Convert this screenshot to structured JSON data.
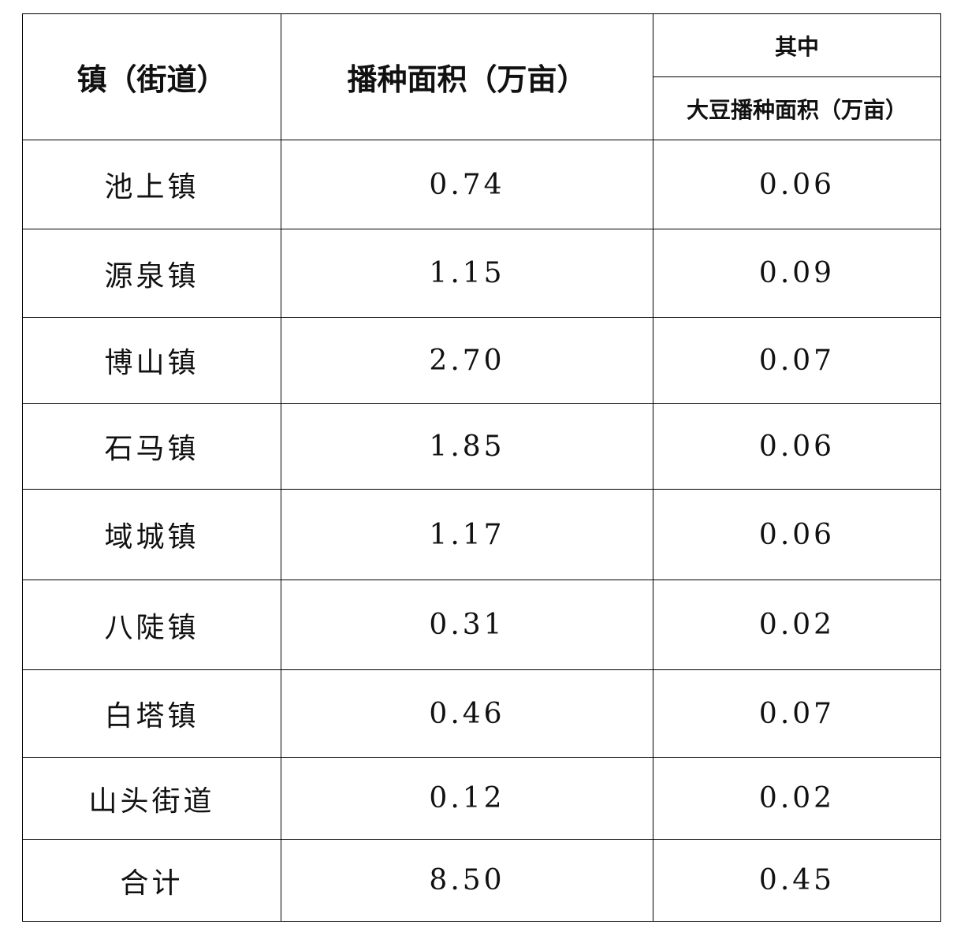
{
  "headers": {
    "town": "镇（街道）",
    "area": "播种面积（万亩）",
    "of_which": "其中",
    "soybean_area": "大豆播种面积（万亩）"
  },
  "rows": [
    {
      "town": "池上镇",
      "area": "0.74",
      "soybean": "0.06"
    },
    {
      "town": "源泉镇",
      "area": "1.15",
      "soybean": "0.09"
    },
    {
      "town": "博山镇",
      "area": "2.70",
      "soybean": "0.07"
    },
    {
      "town": "石马镇",
      "area": "1.85",
      "soybean": "0.06"
    },
    {
      "town": "域城镇",
      "area": "1.17",
      "soybean": "0.06"
    },
    {
      "town": "八陡镇",
      "area": "0.31",
      "soybean": "0.02"
    },
    {
      "town": "白塔镇",
      "area": "0.46",
      "soybean": "0.07"
    },
    {
      "town": "山头街道",
      "area": "0.12",
      "soybean": "0.02"
    },
    {
      "town": "合计",
      "area": "8.50",
      "soybean": "0.45"
    }
  ]
}
